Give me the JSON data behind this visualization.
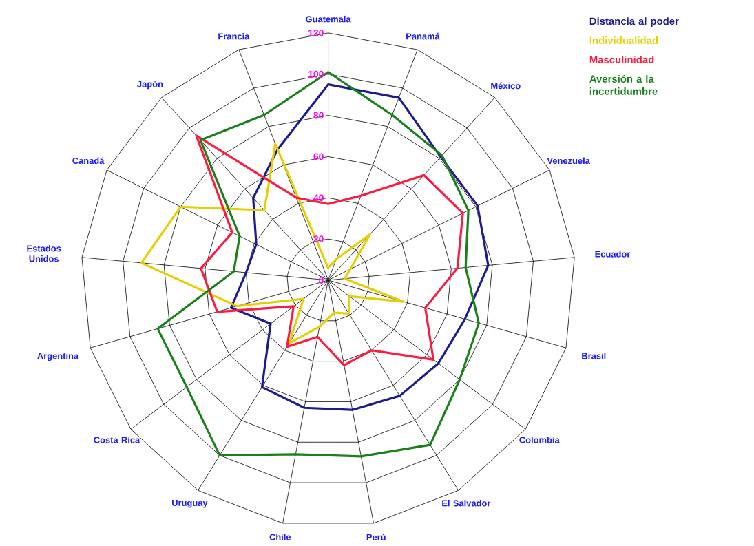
{
  "chart_data": {
    "type": "radar",
    "categories": [
      "Guatemala",
      "Panamá",
      "México",
      "Venezuela",
      "Ecuador",
      "Brasil",
      "Colombia",
      "El Salvador",
      "Perú",
      "Chile",
      "Uruguay",
      "Costa Rica",
      "Argentina",
      "Estados Unidos",
      "Canadá",
      "Japón",
      "Francia"
    ],
    "series": [
      {
        "name": "Distancia al poder",
        "color": "#1c1c8f",
        "values": [
          95,
          95,
          81,
          81,
          78,
          69,
          67,
          66,
          64,
          63,
          61,
          35,
          49,
          40,
          39,
          54,
          68
        ]
      },
      {
        "name": "Individualidad",
        "color": "#e6cf00",
        "values": [
          6,
          11,
          30,
          12,
          8,
          38,
          13,
          19,
          16,
          23,
          36,
          15,
          46,
          91,
          80,
          46,
          71
        ]
      },
      {
        "name": "Masculinidad",
        "color": "#ff1a40",
        "values": [
          37,
          44,
          69,
          73,
          63,
          49,
          64,
          40,
          42,
          28,
          38,
          21,
          56,
          62,
          52,
          95,
          43
        ]
      },
      {
        "name": "Aversión a la incertidumbre",
        "color": "#1a801a",
        "values": [
          101,
          86,
          82,
          76,
          67,
          76,
          80,
          94,
          87,
          86,
          100,
          86,
          86,
          46,
          48,
          92,
          86
        ]
      }
    ],
    "ylim": [
      0,
      120
    ],
    "yticks": [
      0,
      20,
      40,
      60,
      80,
      100,
      120
    ],
    "grid": true,
    "legend": "top right"
  }
}
